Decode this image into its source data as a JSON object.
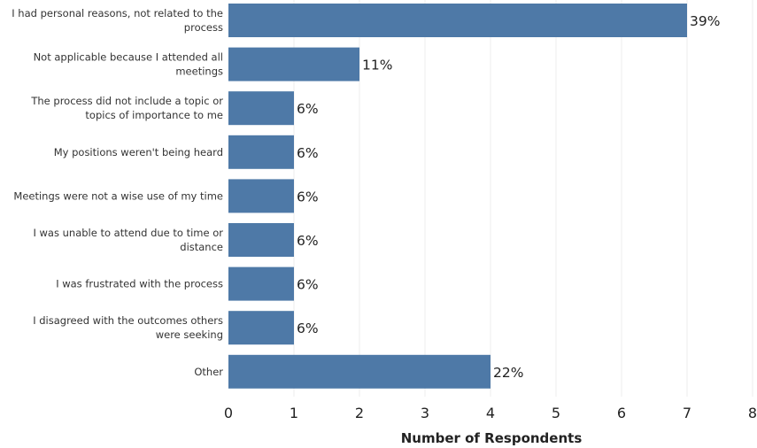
{
  "chart_data": {
    "type": "bar",
    "orientation": "horizontal",
    "categories": [
      [
        "I had personal reasons, not related to the",
        "process"
      ],
      [
        "Not applicable because I attended all",
        "meetings"
      ],
      [
        "The process did not include a topic or",
        "topics of importance to me"
      ],
      [
        "My positions weren't being heard"
      ],
      [
        "Meetings were not a wise use of my time"
      ],
      [
        "I was unable to attend due to time or",
        "distance"
      ],
      [
        "I was frustrated with the process"
      ],
      [
        "I disagreed with the outcomes others",
        "were seeking"
      ],
      [
        "Other"
      ]
    ],
    "values": [
      7,
      2,
      1,
      1,
      1,
      1,
      1,
      1,
      4
    ],
    "data_labels": [
      "39%",
      "11%",
      "6%",
      "6%",
      "6%",
      "6%",
      "6%",
      "6%",
      "22%"
    ],
    "xlim": [
      0,
      8
    ],
    "xticks": [
      "0",
      "1",
      "2",
      "3",
      "4",
      "5",
      "6",
      "7",
      "8"
    ],
    "xlabel": "Number of Respondents",
    "ylabel": "",
    "title": "",
    "grid": "vertical",
    "bar_color": "#4e79a7"
  }
}
